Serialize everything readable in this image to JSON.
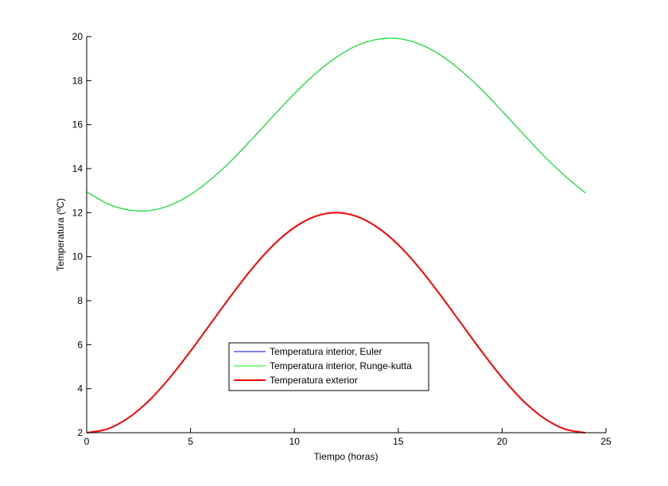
{
  "chart_data": {
    "type": "line",
    "title": "",
    "xlabel": "Tiempo (horas)",
    "ylabel": "Temperatura (ºC)",
    "xlim": [
      0,
      25
    ],
    "ylim": [
      2,
      20
    ],
    "xticks": [
      "0",
      "5",
      "10",
      "15",
      "20",
      "25"
    ],
    "yticks": [
      "2",
      "4",
      "6",
      "8",
      "10",
      "12",
      "14",
      "16",
      "18",
      "20"
    ],
    "grid": false,
    "legend_position": "bottom-center",
    "x": [
      0,
      1,
      2,
      3,
      4,
      5,
      6,
      7,
      8,
      9,
      10,
      11,
      12,
      13,
      14,
      15,
      16,
      17,
      18,
      19,
      20,
      21,
      22,
      23,
      24
    ],
    "series": [
      {
        "name": "Temperatura interior, Euler",
        "color": "#0000ff",
        "width": 1,
        "values": [
          12.95,
          12.41,
          12.12,
          12.09,
          12.33,
          12.82,
          13.53,
          14.4,
          15.39,
          16.41,
          17.41,
          18.31,
          19.05,
          19.59,
          19.88,
          19.91,
          19.67,
          19.18,
          18.47,
          17.6,
          16.61,
          15.59,
          14.59,
          13.69,
          12.9
        ]
      },
      {
        "name": "Temperatura interior, Runge-kutta",
        "color": "#00ff00",
        "width": 1,
        "values": [
          12.95,
          12.41,
          12.12,
          12.09,
          12.33,
          12.82,
          13.53,
          14.4,
          15.39,
          16.41,
          17.41,
          18.31,
          19.05,
          19.59,
          19.88,
          19.91,
          19.67,
          19.18,
          18.47,
          17.6,
          16.61,
          15.59,
          14.59,
          13.69,
          12.9
        ]
      },
      {
        "name": "Temperatura exterior",
        "color": "#ff0000",
        "width": 2,
        "values": [
          2,
          2.17,
          2.67,
          3.46,
          4.5,
          5.71,
          7,
          8.29,
          9.5,
          10.54,
          11.33,
          11.83,
          12,
          11.83,
          11.33,
          10.54,
          9.5,
          8.29,
          7,
          5.71,
          4.5,
          3.46,
          2.67,
          2.17,
          2
        ]
      }
    ]
  }
}
